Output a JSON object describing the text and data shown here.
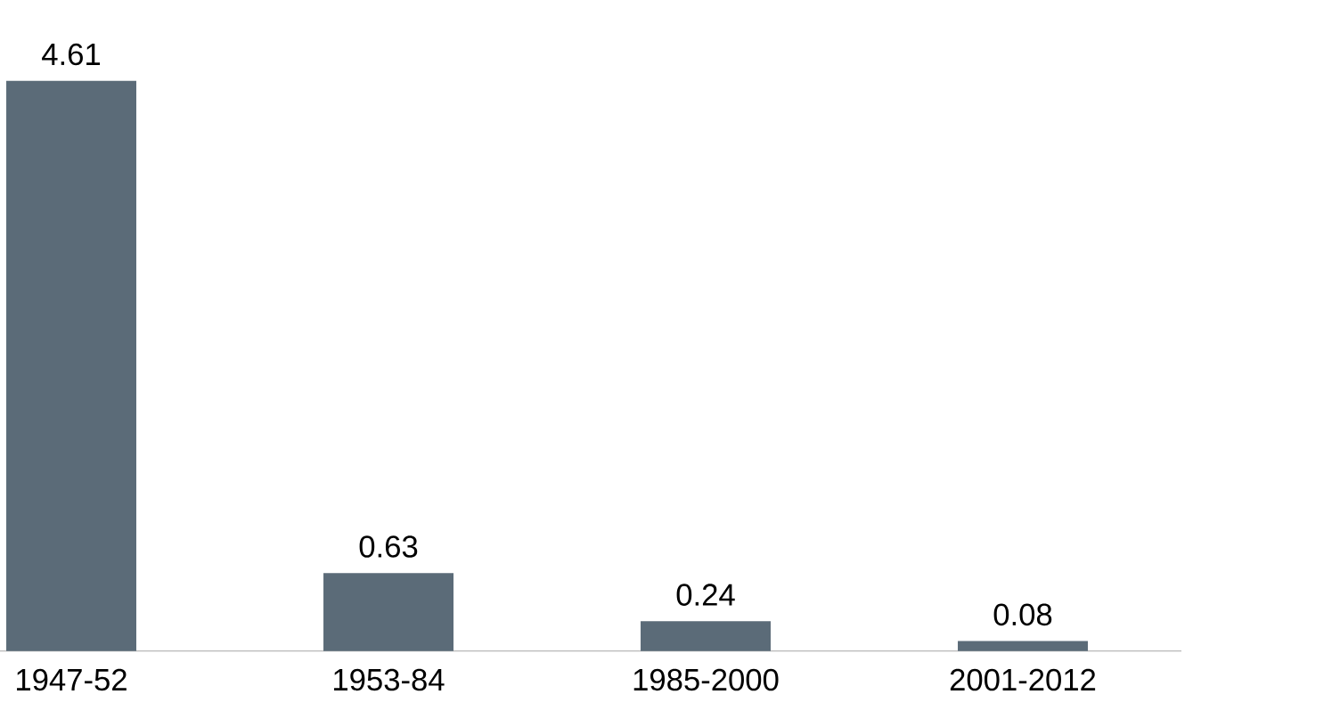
{
  "chart_data": {
    "type": "bar",
    "categories": [
      "1947-52",
      "1953-84",
      "1985-2000",
      "2001-2012"
    ],
    "values": [
      4.61,
      0.63,
      0.24,
      0.08
    ],
    "color": "#5b6b78",
    "data_labels": true
  }
}
